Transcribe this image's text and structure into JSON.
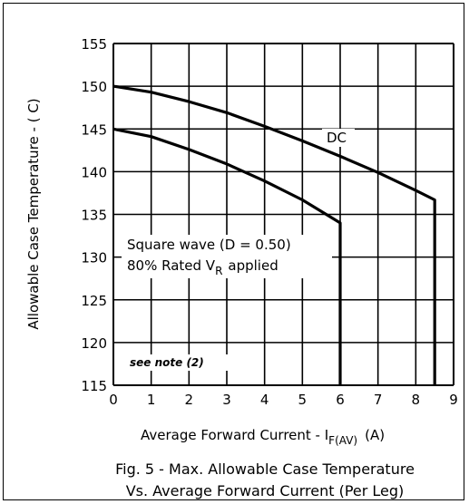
{
  "chart_data": {
    "type": "line",
    "xlabel_prefix": "Average Forward Current - I",
    "xlabel_sub": "F(AV)",
    "xlabel_suffix": "(A)",
    "ylabel": "Allowable Case Temperature - ( C)",
    "xlim": [
      0,
      9
    ],
    "ylim": [
      115,
      155
    ],
    "xticks": [
      "0",
      "1",
      "2",
      "3",
      "4",
      "5",
      "6",
      "7",
      "8",
      "9"
    ],
    "yticks": [
      "115",
      "120",
      "125",
      "130",
      "135",
      "140",
      "145",
      "150",
      "155"
    ],
    "grid": true,
    "series": [
      {
        "name": "DC",
        "x": [
          0,
          1,
          2,
          3,
          4,
          5,
          6,
          7,
          8,
          8.5
        ],
        "y": [
          150,
          149.3,
          148.2,
          146.9,
          145.3,
          143.6,
          141.8,
          139.9,
          137.8,
          136.7
        ],
        "drop_to": 115
      },
      {
        "name": "Square wave",
        "x": [
          0,
          1,
          2,
          3,
          4,
          5,
          6
        ],
        "y": [
          145,
          144.1,
          142.6,
          140.9,
          138.9,
          136.7,
          134
        ],
        "drop_to": 115
      }
    ],
    "annotations": {
      "dc_label": "DC",
      "square_line1": "Square wave (D = 0.50)",
      "square_line2_prefix": "80% Rated V",
      "square_line2_sub": "R",
      "square_line2_suffix": "applied",
      "note": "see note (2)"
    },
    "caption_line1": "Fig. 5 - Max. Allowable Case Temperature",
    "caption_line2": "Vs. Average Forward Current (Per Leg)"
  }
}
